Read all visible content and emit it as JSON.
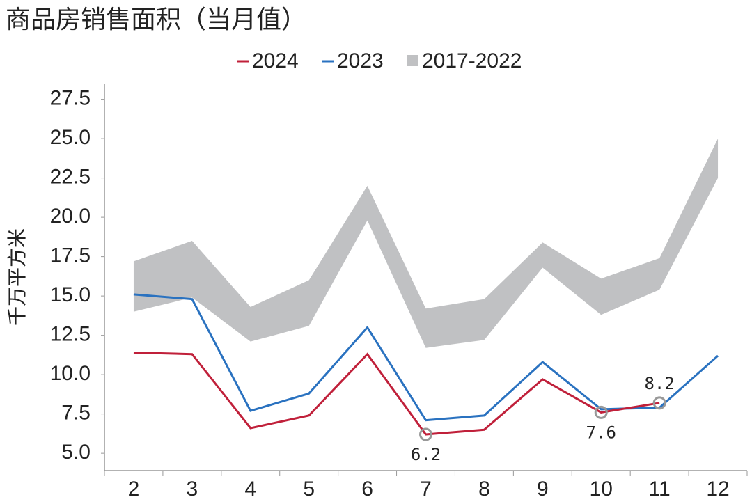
{
  "chart_data": {
    "type": "line",
    "title": "商品房销售面积（当月值）",
    "y_label": "千万平方米",
    "categories": [
      "2",
      "3",
      "4",
      "5",
      "6",
      "7",
      "8",
      "9",
      "10",
      "11",
      "12"
    ],
    "series": [
      {
        "name": "2024",
        "color": "#c0203a",
        "values": [
          11.4,
          11.3,
          6.6,
          7.4,
          11.3,
          6.2,
          6.5,
          9.7,
          7.6,
          8.2,
          null
        ],
        "value_labels": [
          null,
          null,
          null,
          null,
          null,
          "6.2",
          null,
          null,
          "7.6",
          "8.2",
          null
        ]
      },
      {
        "name": "2023",
        "color": "#2a72c0",
        "values": [
          15.1,
          14.8,
          7.7,
          8.8,
          13.0,
          7.1,
          7.4,
          10.8,
          7.8,
          7.9,
          11.2
        ]
      },
      {
        "name": "2017-2022",
        "color": "#c0c1c3",
        "type": "band",
        "upper": [
          17.2,
          18.5,
          14.3,
          16.0,
          22.0,
          14.2,
          14.8,
          18.4,
          16.1,
          17.4,
          25.0
        ],
        "lower": [
          14.0,
          14.9,
          12.1,
          13.1,
          19.8,
          11.7,
          12.2,
          16.8,
          13.8,
          15.4,
          22.5
        ]
      }
    ],
    "ylim": [
      3.9,
      28.5
    ],
    "yticks": [
      {
        "value": 5,
        "label": "5.0"
      },
      {
        "value": 7.5,
        "label": "7.5"
      },
      {
        "value": 10,
        "label": "10.0"
      },
      {
        "value": 12.5,
        "label": "12.5"
      },
      {
        "value": 15,
        "label": "15.0"
      },
      {
        "value": 17.5,
        "label": "17.5"
      },
      {
        "value": 20,
        "label": "20.0"
      },
      {
        "value": 22.5,
        "label": "22.5"
      },
      {
        "value": 25,
        "label": "25.0"
      },
      {
        "value": 27.5,
        "label": "27.5"
      }
    ],
    "legend": "top"
  }
}
